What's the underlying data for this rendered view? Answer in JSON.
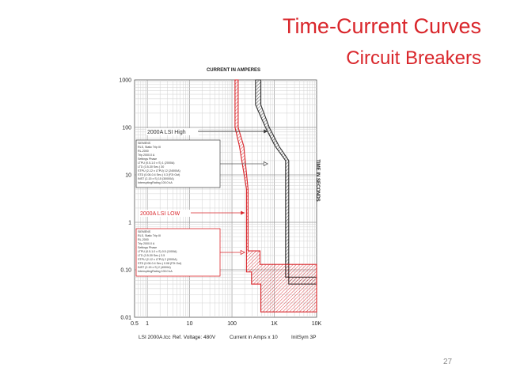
{
  "slide": {
    "title_line1": "Time-Current Curves",
    "title_line2": "Circuit Breakers",
    "page_number": "27",
    "accent_color": "#d9262b"
  },
  "chart_data": {
    "type": "line",
    "top_axis_label": "CURRENT IN AMPERES",
    "right_axis_label": "TIME IN SECONDS",
    "x_scale": "log",
    "y_scale": "log",
    "xlim": [
      0.5,
      10000
    ],
    "ylim": [
      0.01,
      1000
    ],
    "x_tick_labels": [
      {
        "value": 0.5,
        "label": "0.5"
      },
      {
        "value": 1,
        "label": "1"
      },
      {
        "value": 10,
        "label": "10"
      },
      {
        "value": 100,
        "label": "100"
      },
      {
        "value": 1000,
        "label": "1K"
      },
      {
        "value": 10000,
        "label": "10K"
      }
    ],
    "y_tick_labels": [
      {
        "value": 1000,
        "label": "1000"
      },
      {
        "value": 100,
        "label": "100"
      },
      {
        "value": 10,
        "label": "10"
      },
      {
        "value": 1,
        "label": "1"
      },
      {
        "value": 0.1,
        "label": "0.10"
      },
      {
        "value": 0.01,
        "label": "0.01"
      }
    ],
    "grid": true,
    "series": [
      {
        "name": "2000A LSI High",
        "color": "#333333",
        "band_left": [
          [
            360,
            1000
          ],
          [
            360,
            300
          ],
          [
            620,
            100
          ],
          [
            1050,
            40
          ],
          [
            1850,
            20
          ],
          [
            1850,
            0.07
          ],
          [
            10000,
            0.07
          ]
        ],
        "band_right": [
          [
            480,
            1000
          ],
          [
            480,
            300
          ],
          [
            760,
            100
          ],
          [
            1300,
            40
          ],
          [
            2200,
            20
          ],
          [
            2200,
            0.05
          ],
          [
            10000,
            0.05
          ]
        ]
      },
      {
        "name": "2000A LSI LOW",
        "color": "#d9262b",
        "band_left": [
          [
            118,
            1000
          ],
          [
            118,
            100
          ],
          [
            150,
            40
          ],
          [
            220,
            5
          ],
          [
            220,
            0.09
          ],
          [
            290,
            0.09
          ],
          [
            290,
            0.05
          ],
          [
            480,
            0.05
          ],
          [
            480,
            0.013
          ],
          [
            10000,
            0.013
          ]
        ],
        "band_right": [
          [
            140,
            1000
          ],
          [
            140,
            100
          ],
          [
            190,
            40
          ],
          [
            240,
            5
          ],
          [
            240,
            0.25
          ],
          [
            460,
            0.25
          ],
          [
            460,
            0.13
          ],
          [
            10000,
            0.13
          ]
        ]
      }
    ],
    "annotations": [
      {
        "text": "2000A LSI High",
        "color": "#333333",
        "arrow_to": [
          700,
          100
        ]
      },
      {
        "text": "2000A LSI LOW",
        "color": "#d9262b",
        "arrow_to": [
          200,
          3
        ]
      }
    ],
    "notes": [
      {
        "color": "#555555",
        "lines": [
          "SIEMENS",
          "RLS, Static Trip III",
          "RL-2000",
          "Trip 2000.0 A",
          "Settings Phase",
          "LTPU (0.5-1.0 x S) 1 (2000A)",
          "LTD (3.5-30 Sec.) 30",
          "STPU (2-12 x LTPU) 12 (24000A)",
          "STD (0.08-0.4 Sec.) 0.3 (F2t Out)",
          "INST (2-15 x S) 15 (30000A)",
          "InterruptingRating 100.0 kA"
        ]
      },
      {
        "color": "#d9262b",
        "lines": [
          "SIEMENS",
          "RLS, Static Trip III",
          "RL-2000",
          "Trip 2000.0 A",
          "Settings Phase",
          "LTPU (0.5-1.0 x S) 0.5 (1000A)",
          "LTD (3.5-30 Sec.) 3.5",
          "STPU (2-12 x LTPU) 2 (2000A)",
          "STD (0.08-0.4 Sec.) 0.08 (F2t Out)",
          "INST (2-15 x S) 2 (4000A)",
          "InterruptingRating 100.0 kA"
        ]
      }
    ],
    "footer": {
      "file": "LSI 2000A.tcc",
      "ref_voltage": "Ref. Voltage: 480V",
      "current_scale": "Current in Amps x 10",
      "init_sym": "InitSym 3P"
    }
  }
}
